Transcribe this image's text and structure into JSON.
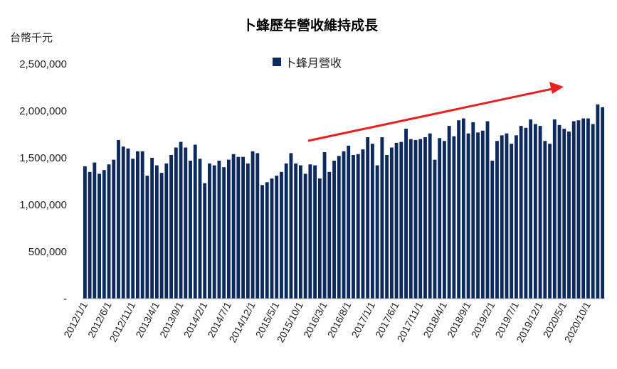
{
  "chart_data": {
    "type": "bar",
    "title": "卜蜂歷年營收維持成長",
    "unit_label": "台幣千元",
    "legend": "卜蜂月營收",
    "bar_color": "#0d2a5e",
    "trend_arrow_color": "#e8201f",
    "ylim": [
      0,
      2500000
    ],
    "yticks": [
      0,
      500000,
      1000000,
      1500000,
      2000000,
      2500000
    ],
    "ytick_labels": [
      "-",
      "500,000",
      "1,000,000",
      "1,500,000",
      "2,000,000",
      "2,500,000"
    ],
    "xtick_labels": [
      "2012/1/1",
      "2012/6/1",
      "2012/11/1",
      "2013/4/1",
      "2013/9/1",
      "2014/2/1",
      "2014/7/1",
      "2014/12/1",
      "2015/5/1",
      "2015/10/1",
      "2016/3/1",
      "2016/8/1",
      "2017/1/1",
      "2017/6/1",
      "2017/11/1",
      "2018/4/1",
      "2018/9/1",
      "2019/2/1",
      "2019/7/1",
      "2019/12/1",
      "2020/5/1",
      "2020/10/1"
    ],
    "start": "2012-01",
    "values": [
      1410000,
      1350000,
      1450000,
      1330000,
      1370000,
      1430000,
      1480000,
      1690000,
      1620000,
      1600000,
      1490000,
      1570000,
      1570000,
      1310000,
      1500000,
      1420000,
      1340000,
      1440000,
      1530000,
      1610000,
      1670000,
      1610000,
      1470000,
      1640000,
      1490000,
      1230000,
      1440000,
      1420000,
      1470000,
      1400000,
      1480000,
      1540000,
      1510000,
      1510000,
      1440000,
      1570000,
      1550000,
      1210000,
      1240000,
      1280000,
      1310000,
      1350000,
      1440000,
      1550000,
      1440000,
      1420000,
      1330000,
      1430000,
      1420000,
      1280000,
      1560000,
      1350000,
      1470000,
      1520000,
      1570000,
      1630000,
      1530000,
      1540000,
      1590000,
      1720000,
      1650000,
      1420000,
      1720000,
      1530000,
      1610000,
      1660000,
      1670000,
      1810000,
      1700000,
      1690000,
      1700000,
      1720000,
      1760000,
      1480000,
      1710000,
      1680000,
      1840000,
      1730000,
      1900000,
      1920000,
      1760000,
      1880000,
      1770000,
      1790000,
      1890000,
      1470000,
      1680000,
      1740000,
      1760000,
      1650000,
      1740000,
      1840000,
      1820000,
      1910000,
      1860000,
      1840000,
      1680000,
      1650000,
      1910000,
      1850000,
      1810000,
      1780000,
      1890000,
      1900000,
      1920000,
      1920000,
      1860000,
      2070000,
      2040000
    ]
  }
}
